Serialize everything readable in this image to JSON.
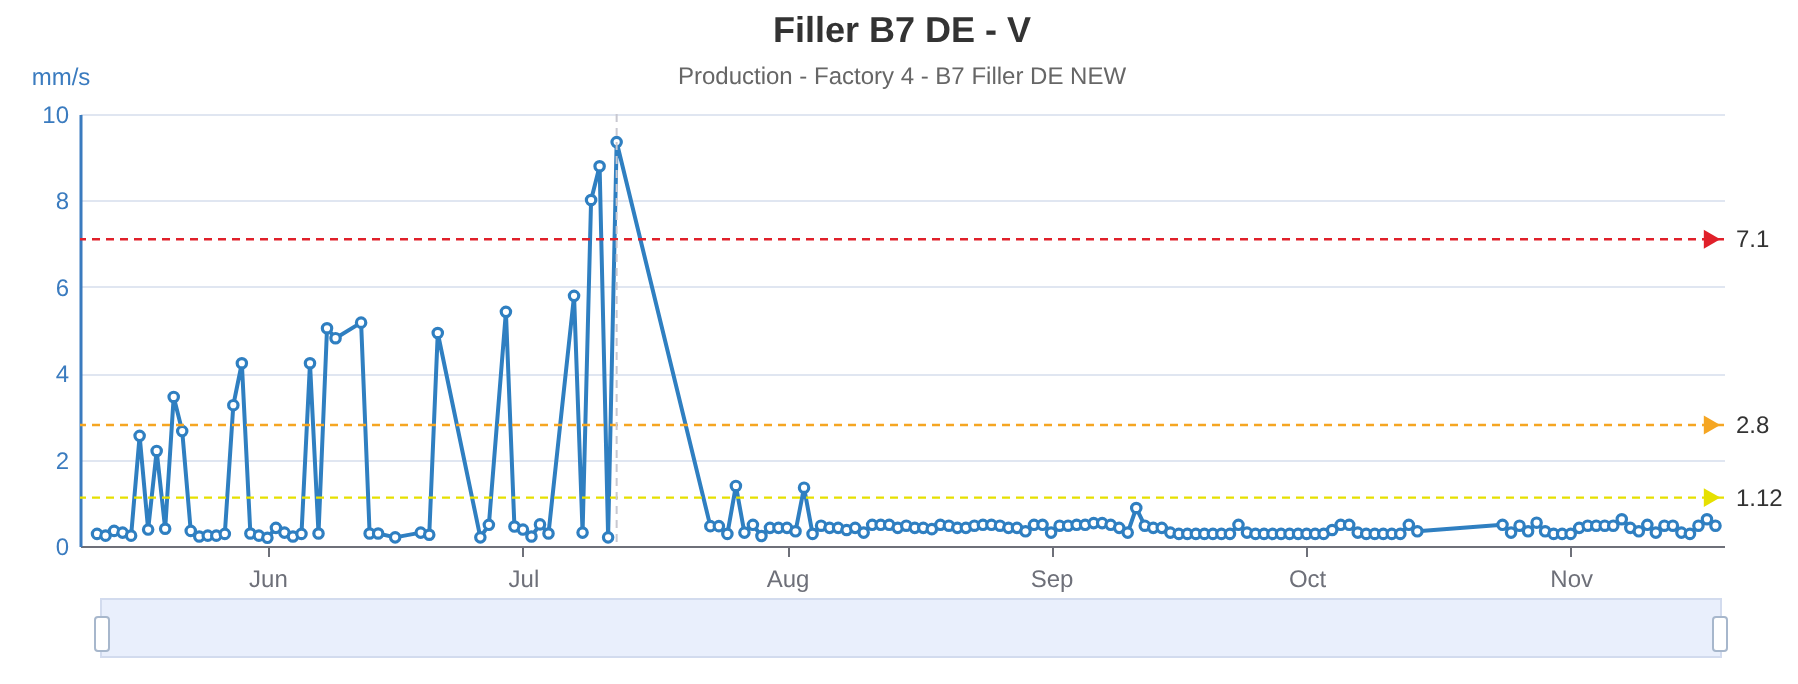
{
  "chart_data": {
    "type": "line",
    "title": "Filler B7 DE - V",
    "subtitle": "Production - Factory 4 - B7 Filler DE NEW",
    "ylabel": "mm/s",
    "x": [
      "--05-12",
      "--05-13",
      "--05-14",
      "--05-15",
      "--05-16",
      "--05-17",
      "--05-18",
      "--05-19",
      "--05-20",
      "--05-21",
      "--05-22",
      "--05-23",
      "--05-24",
      "--05-25",
      "--05-26",
      "--05-27",
      "--05-28",
      "--05-29",
      "--05-30",
      "--05-31",
      "--06-01",
      "--06-02",
      "--06-03",
      "--06-04",
      "--06-05",
      "--06-06",
      "--06-07",
      "--06-08",
      "--06-09",
      "--06-12",
      "--06-13",
      "--06-14",
      "--06-16",
      "--06-19",
      "--06-20",
      "--06-21",
      "--06-26",
      "--06-27",
      "--06-29",
      "--06-30",
      "--07-01",
      "--07-02",
      "--07-03",
      "--07-04",
      "--07-07",
      "--07-08",
      "--07-09",
      "--07-10",
      "--07-11",
      "--07-12",
      "--07-23",
      "--07-24",
      "--07-25",
      "--07-26",
      "--07-27",
      "--07-28",
      "--07-29",
      "--07-30",
      "--07-31",
      "--08-01",
      "--08-02",
      "--08-03",
      "--08-04",
      "--08-05",
      "--08-06",
      "--08-07",
      "--08-08",
      "--08-09",
      "--08-10",
      "--08-11",
      "--08-12",
      "--08-13",
      "--08-14",
      "--08-15",
      "--08-16",
      "--08-17",
      "--08-18",
      "--08-19",
      "--08-20",
      "--08-21",
      "--08-22",
      "--08-23",
      "--08-24",
      "--08-25",
      "--08-26",
      "--08-27",
      "--08-28",
      "--08-29",
      "--08-30",
      "--08-31",
      "--09-01",
      "--09-02",
      "--09-03",
      "--09-04",
      "--09-05",
      "--09-06",
      "--09-07",
      "--09-08",
      "--09-09",
      "--09-10",
      "--09-11",
      "--09-12",
      "--09-13",
      "--09-14",
      "--09-15",
      "--09-16",
      "--09-17",
      "--09-18",
      "--09-19",
      "--09-20",
      "--09-21",
      "--09-22",
      "--09-23",
      "--09-24",
      "--09-25",
      "--09-26",
      "--09-27",
      "--09-28",
      "--09-29",
      "--09-30",
      "--10-01",
      "--10-02",
      "--10-03",
      "--10-04",
      "--10-05",
      "--10-06",
      "--10-07",
      "--10-08",
      "--10-09",
      "--10-10",
      "--10-11",
      "--10-12",
      "--10-13",
      "--10-14",
      "--10-24",
      "--10-25",
      "--10-26",
      "--10-27",
      "--10-28",
      "--10-29",
      "--10-30",
      "--10-31",
      "--11-01",
      "--11-02",
      "--11-03",
      "--11-04",
      "--11-05",
      "--11-06",
      "--11-07",
      "--11-08",
      "--11-09",
      "--11-10",
      "--11-11",
      "--11-12",
      "--11-13",
      "--11-14",
      "--11-15",
      "--11-16",
      "--11-17",
      "--11-18"
    ],
    "values": [
      0.28,
      0.24,
      0.35,
      0.31,
      0.24,
      2.55,
      0.38,
      2.2,
      0.4,
      3.45,
      2.66,
      0.35,
      0.22,
      0.24,
      0.24,
      0.28,
      3.26,
      4.23,
      0.29,
      0.24,
      0.19,
      0.42,
      0.31,
      0.22,
      0.28,
      4.23,
      0.29,
      5.04,
      4.81,
      5.17,
      0.29,
      0.29,
      0.2,
      0.31,
      0.26,
      4.93,
      0.2,
      0.49,
      5.42,
      0.45,
      0.38,
      0.22,
      0.5,
      0.29,
      5.79,
      0.31,
      8.01,
      8.79,
      0.2,
      9.35,
      0.46,
      0.46,
      0.28,
      1.39,
      0.31,
      0.49,
      0.23,
      0.42,
      0.42,
      0.42,
      0.34,
      1.35,
      0.28,
      0.47,
      0.42,
      0.42,
      0.37,
      0.42,
      0.31,
      0.49,
      0.49,
      0.49,
      0.42,
      0.47,
      0.42,
      0.42,
      0.39,
      0.49,
      0.47,
      0.42,
      0.42,
      0.47,
      0.49,
      0.49,
      0.47,
      0.42,
      0.42,
      0.34,
      0.49,
      0.49,
      0.31,
      0.47,
      0.47,
      0.49,
      0.49,
      0.53,
      0.53,
      0.49,
      0.42,
      0.31,
      0.88,
      0.47,
      0.42,
      0.42,
      0.31,
      0.28,
      0.28,
      0.28,
      0.28,
      0.28,
      0.28,
      0.28,
      0.49,
      0.31,
      0.28,
      0.28,
      0.28,
      0.28,
      0.28,
      0.28,
      0.28,
      0.28,
      0.28,
      0.37,
      0.49,
      0.49,
      0.31,
      0.28,
      0.28,
      0.28,
      0.28,
      0.28,
      0.49,
      0.34,
      0.49,
      0.31,
      0.47,
      0.34,
      0.54,
      0.34,
      0.28,
      0.28,
      0.28,
      0.42,
      0.47,
      0.47,
      0.47,
      0.47,
      0.62,
      0.42,
      0.34,
      0.49,
      0.31,
      0.47,
      0.47,
      0.31,
      0.28,
      0.47,
      0.62,
      0.47
    ],
    "color": "#2f7fc1",
    "marker": "circle",
    "xlim": [
      "--05-10",
      "--11-19"
    ],
    "xticks": [
      {
        "value": "--06-01",
        "label": "Jun"
      },
      {
        "value": "--07-01",
        "label": "Jul"
      },
      {
        "value": "--08-01",
        "label": "Aug"
      },
      {
        "value": "--09-01",
        "label": "Sep"
      },
      {
        "value": "--10-01",
        "label": "Oct"
      },
      {
        "value": "--11-01",
        "label": "Nov"
      }
    ],
    "ylim": [
      0,
      10
    ],
    "yticks": [
      0,
      2,
      4,
      6,
      8,
      10
    ],
    "grid": "y",
    "ref_lines": [
      {
        "axis": "y",
        "value": 7.1,
        "label": "7.1",
        "color": "#e0202a",
        "line_style": "dashed"
      },
      {
        "axis": "y",
        "value": 2.8,
        "label": "2.8",
        "color": "#f5a623",
        "line_style": "dashed"
      },
      {
        "axis": "y",
        "value": 1.12,
        "label": "1.12",
        "color": "#e6e000",
        "line_style": "dashed"
      },
      {
        "axis": "x",
        "value": "--07-12",
        "color": "#c8c8d0",
        "line_style": "dashed"
      }
    ]
  }
}
